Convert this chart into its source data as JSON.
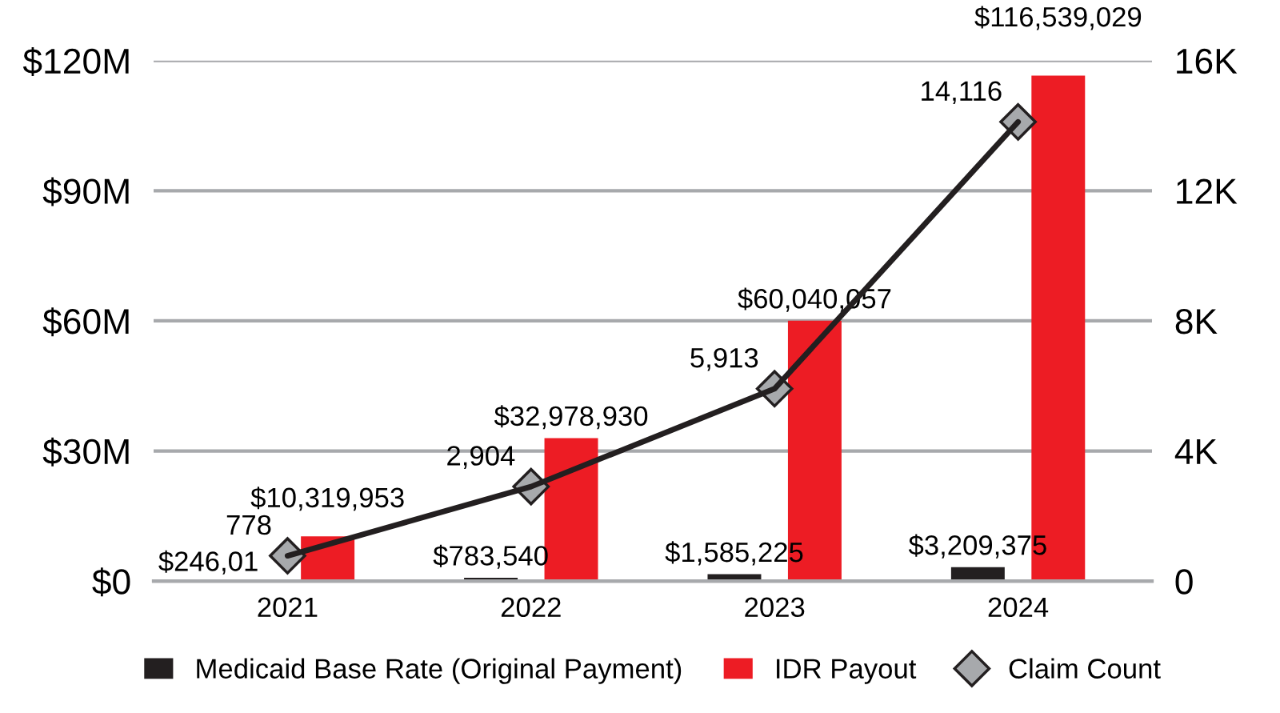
{
  "chart_data": {
    "type": "bar",
    "categories": [
      "2021",
      "2022",
      "2023",
      "2024"
    ],
    "series": [
      {
        "name": "Medicaid Base Rate (Original Payment)",
        "color": "#231f20",
        "values": [
          246010,
          783540,
          1585225,
          3209375
        ],
        "value_labels": [
          null,
          "$783,540",
          "$1,585,225",
          "$3,209,375"
        ]
      },
      {
        "name": "IDR Payout",
        "color": "#ed1c24",
        "values": [
          10319953,
          32978930,
          60040057,
          116539029
        ],
        "value_labels": [
          "$10,319,953",
          "$32,978,930",
          "$60,040,057",
          "$116,539,029"
        ]
      },
      {
        "name": "Claim Count",
        "type": "line",
        "axis": "y2",
        "color": "#231f20",
        "marker": "diamond",
        "values": [
          778,
          2904,
          5913,
          14116
        ],
        "value_labels": [
          "778",
          "2,904",
          "5,913",
          "14,116"
        ]
      }
    ],
    "ylim": [
      0,
      120000000
    ],
    "yticks": [
      {
        "value": 0,
        "label": "$0"
      },
      {
        "value": 30000000,
        "label": "$30M"
      },
      {
        "value": 60000000,
        "label": "$60M"
      },
      {
        "value": 90000000,
        "label": "$90M"
      },
      {
        "value": 120000000,
        "label": "$120M"
      }
    ],
    "y2lim": [
      0,
      16000
    ],
    "y2ticks": [
      0,
      {
        "value": 4000,
        "label": "4K"
      },
      {
        "value": 8000,
        "label": "8K"
      },
      {
        "value": 12000,
        "label": "12K"
      },
      {
        "value": 16000,
        "label": "16K"
      }
    ],
    "annotations": [
      "$246,01"
    ],
    "grid": "y",
    "legend": "bottom"
  }
}
